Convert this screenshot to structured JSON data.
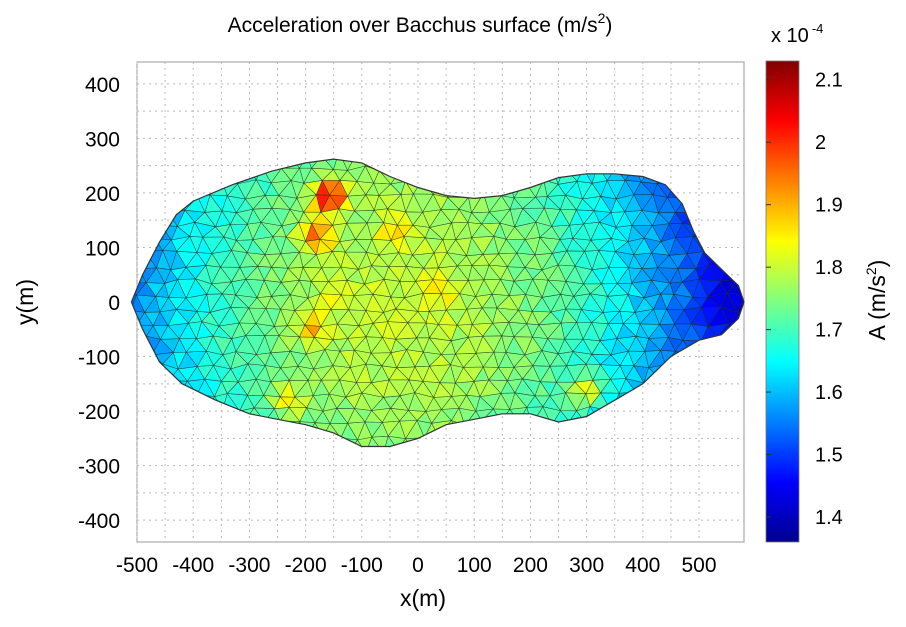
{
  "chart_data": {
    "type": "heatmap",
    "title": "Acceleration over Bacchus surface (m/s",
    "title_superscript": "2",
    "title_suffix": ")",
    "xlabel": "x(m)",
    "ylabel": "y(m)",
    "xlim": [
      -500,
      580
    ],
    "ylim": [
      -440,
      440
    ],
    "x_ticks": [
      "-500",
      "-400",
      "-300",
      "-200",
      "-100",
      "0",
      "100",
      "200",
      "300",
      "400",
      "500"
    ],
    "y_ticks": [
      "400",
      "300",
      "200",
      "100",
      "0",
      "-100",
      "-200",
      "-300",
      "-400"
    ],
    "grid": true,
    "colorbar": {
      "label": "A (m/s",
      "label_superscript": "2",
      "label_suffix": ")",
      "multiplier": "x 10",
      "multiplier_exponent": "-4",
      "ticks": [
        "2.1",
        "2",
        "1.9",
        "1.8",
        "1.7",
        "1.6",
        "1.5",
        "1.4"
      ],
      "range": [
        1.36,
        2.13
      ],
      "colormap": "jet"
    },
    "surface": {
      "outline_upper": [
        [
          -510,
          0
        ],
        [
          -490,
          50
        ],
        [
          -460,
          110
        ],
        [
          -430,
          160
        ],
        [
          -400,
          185
        ],
        [
          -330,
          215
        ],
        [
          -260,
          240
        ],
        [
          -200,
          255
        ],
        [
          -150,
          262
        ],
        [
          -100,
          255
        ],
        [
          -50,
          230
        ],
        [
          0,
          210
        ],
        [
          50,
          195
        ],
        [
          100,
          190
        ],
        [
          150,
          195
        ],
        [
          200,
          210
        ],
        [
          250,
          228
        ],
        [
          300,
          235
        ],
        [
          350,
          235
        ],
        [
          400,
          230
        ],
        [
          440,
          215
        ],
        [
          470,
          180
        ],
        [
          490,
          130
        ],
        [
          510,
          90
        ],
        [
          540,
          60
        ],
        [
          570,
          30
        ],
        [
          580,
          0
        ]
      ],
      "outline_lower": [
        [
          -510,
          0
        ],
        [
          -490,
          -50
        ],
        [
          -460,
          -110
        ],
        [
          -420,
          -150
        ],
        [
          -360,
          -180
        ],
        [
          -300,
          -205
        ],
        [
          -250,
          -215
        ],
        [
          -200,
          -225
        ],
        [
          -150,
          -240
        ],
        [
          -100,
          -265
        ],
        [
          -50,
          -265
        ],
        [
          0,
          -250
        ],
        [
          50,
          -225
        ],
        [
          100,
          -215
        ],
        [
          150,
          -205
        ],
        [
          200,
          -205
        ],
        [
          250,
          -220
        ],
        [
          300,
          -210
        ],
        [
          350,
          -180
        ],
        [
          400,
          -150
        ],
        [
          450,
          -100
        ],
        [
          500,
          -70
        ],
        [
          540,
          -60
        ],
        [
          570,
          -30
        ],
        [
          580,
          0
        ]
      ],
      "value_peaks": [
        {
          "x": -160,
          "y": 195,
          "A": 2.12
        },
        {
          "x": -180,
          "y": 120,
          "A": 1.98
        },
        {
          "x": 300,
          "y": -165,
          "A": 1.95
        },
        {
          "x": -190,
          "y": -45,
          "A": 1.92
        },
        {
          "x": -230,
          "y": -180,
          "A": 1.9
        },
        {
          "x": -40,
          "y": 130,
          "A": 1.88
        },
        {
          "x": 40,
          "y": 20,
          "A": 1.85
        },
        {
          "x": -150,
          "y": 10,
          "A": 1.84
        }
      ]
    }
  }
}
